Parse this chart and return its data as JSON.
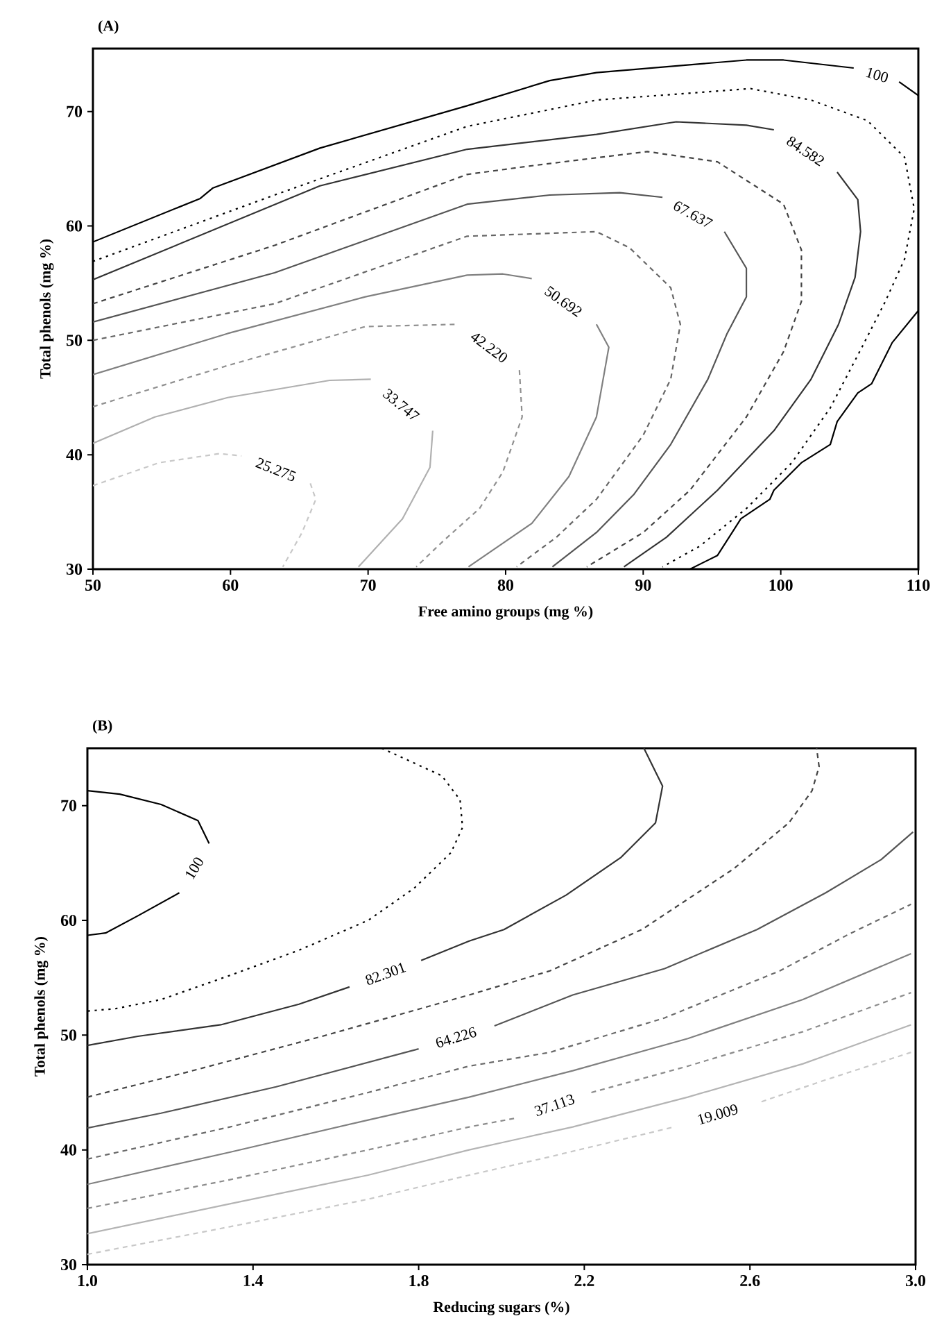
{
  "chart_data": [
    {
      "type": "line",
      "title": "(A)",
      "xlabel": "Free amino groups (mg %)",
      "ylabel": "Total phenols (mg %)",
      "xlim": [
        50,
        110
      ],
      "ylim": [
        30,
        75.5
      ],
      "xticks": [
        50,
        60,
        70,
        80,
        90,
        100,
        110
      ],
      "yticks": [
        30,
        40,
        50,
        60,
        70
      ],
      "marker": "none",
      "series": [
        {
          "name": "100",
          "color": "#000000",
          "line_style": "solid",
          "x": [
            50,
            57.8,
            58.7,
            66.5,
            77.2,
            83.2,
            86.6,
            97.5,
            100.2,
            105.3,
            107,
            108.6,
            110,
            110,
            108.1,
            106.6,
            105.6,
            104.1,
            103.6,
            101.5,
            99.5,
            99.2,
            97.1,
            95.4,
            93.4
          ],
          "values": [
            58.6,
            62.4,
            63.3,
            66.8,
            70.5,
            72.7,
            73.4,
            74.5,
            74.5,
            73.8,
            null,
            72.6,
            71.4,
            52.6,
            49.8,
            46.2,
            45.4,
            42.9,
            40.9,
            39.3,
            36.9,
            36.1,
            34.4,
            31.2,
            30
          ]
        },
        {
          "color": "#000000",
          "line_style": "dotted",
          "x": [
            50,
            63.2,
            77.2,
            86.6,
            97.8,
            102.2,
            106.3,
            109,
            109.7,
            109,
            107.6,
            105.9,
            103.6,
            100.8,
            97.5,
            94.1,
            91.4
          ],
          "values": [
            56.9,
            62.7,
            68.7,
            71.0,
            72.0,
            71.0,
            69.2,
            66.0,
            61.5,
            57.1,
            53.4,
            49.4,
            44.1,
            39.3,
            35.3,
            32.0,
            30.2
          ]
        },
        {
          "name": "84.582",
          "color": "#333333",
          "line_style": "solid",
          "x": [
            50,
            66.5,
            77.2,
            86.6,
            92.4,
            97.5,
            99.5,
            101.8,
            104.1,
            105.6,
            105.8,
            105.4,
            104.2,
            102.2,
            99.5,
            95.4,
            91.7,
            88.6
          ],
          "values": [
            55.3,
            63.5,
            66.7,
            68.0,
            69.1,
            68.8,
            68.4,
            null,
            64.7,
            62.3,
            59.5,
            55.5,
            51.4,
            46.6,
            42.1,
            36.9,
            32.8,
            30.2
          ]
        },
        {
          "color": "#444444",
          "line_style": "dashed",
          "x": [
            50,
            63.2,
            77.2,
            81.5,
            90.3,
            95.4,
            100.2,
            101.5,
            101.5,
            100.2,
            97.5,
            93.4,
            90.0,
            85.9
          ],
          "values": [
            53.2,
            58.3,
            64.5,
            65.2,
            66.5,
            65.6,
            61.9,
            57.9,
            53.4,
            49.0,
            43.3,
            36.9,
            33.2,
            30.2
          ]
        },
        {
          "name": "67.637",
          "color": "#555555",
          "line_style": "solid",
          "x": [
            50,
            63.2,
            77.2,
            83.2,
            88.3,
            91.4,
            93.6,
            95.9,
            97.5,
            97.5,
            96.1,
            94.7,
            92.0,
            89.3,
            86.6,
            83.4
          ],
          "values": [
            51.6,
            55.9,
            61.9,
            62.7,
            62.9,
            62.5,
            null,
            59.5,
            56.3,
            53.8,
            50.6,
            46.6,
            40.9,
            36.5,
            33.2,
            30.2
          ]
        },
        {
          "color": "#666666",
          "line_style": "dashed",
          "x": [
            50,
            63.2,
            77.2,
            86.6,
            89,
            92.0,
            92.7,
            92.0,
            90.0,
            86.6,
            83.7,
            80.8
          ],
          "values": [
            50.0,
            53.2,
            59.1,
            59.5,
            58.1,
            54.6,
            51.4,
            46.6,
            41.7,
            36.1,
            32.8,
            30.2
          ]
        },
        {
          "name": "50.692",
          "color": "#808080",
          "line_style": "solid",
          "x": [
            50,
            59.8,
            69.8,
            77.2,
            79.8,
            81.9,
            84.2,
            86.6,
            87.5,
            86.6,
            84.6,
            81.9,
            77.3
          ],
          "values": [
            47.0,
            50.6,
            53.8,
            55.7,
            55.8,
            55.4,
            null,
            51.4,
            49.4,
            43.3,
            38.1,
            34.0,
            30.2
          ]
        },
        {
          "name": "42.220",
          "color": "#909090",
          "line_style": "dashed",
          "x": [
            50,
            59.8,
            69.8,
            76.5,
            78.8,
            81.0,
            81.2,
            79.8,
            78.1,
            75.5,
            73.5
          ],
          "values": [
            44.2,
            47.8,
            51.2,
            51.4,
            null,
            47.4,
            43.3,
            38.5,
            35.3,
            32.5,
            30.2
          ]
        },
        {
          "name": "33.747",
          "color": "#b0b0b0",
          "line_style": "solid",
          "x": [
            50,
            54.5,
            59.8,
            67.2,
            70.2,
            72.4,
            74.7,
            74.5,
            72.5,
            69.3
          ],
          "values": [
            41.0,
            43.3,
            45.0,
            46.5,
            46.6,
            null,
            42.1,
            38.9,
            34.4,
            30.2
          ]
        },
        {
          "name": "25.275",
          "color": "#c8c8c8",
          "line_style": "dashed",
          "x": [
            50,
            54.8,
            59.2,
            60.8,
            63.3,
            65.8,
            66.2,
            65.2,
            63.8
          ],
          "values": [
            37.3,
            39.3,
            40.1,
            39.9,
            null,
            37.5,
            36.1,
            33.2,
            30.2
          ]
        }
      ]
    },
    {
      "type": "line",
      "title": "(B)",
      "xlabel": "Reducing sugars (%)",
      "ylabel": "Total phenols (mg %)",
      "xlim": [
        1.0,
        3.0
      ],
      "ylim": [
        30,
        75
      ],
      "xticks": [
        {
          "value": 1.0,
          "label": "1.0"
        },
        1.4,
        1.8,
        2.2,
        2.6,
        {
          "value": 3.0,
          "label": "3.0"
        }
      ],
      "yticks": [
        30,
        40,
        50,
        60,
        70
      ],
      "marker": "none",
      "series": [
        {
          "name": "100",
          "color": "#000000",
          "line_style": "solid",
          "x": [
            1.0,
            1.078,
            1.178,
            1.267,
            1.294,
            1.258,
            1.222,
            1.122,
            1.044,
            1.0
          ],
          "values": [
            71.3,
            71.0,
            70.1,
            68.7,
            66.7,
            null,
            62.4,
            60.4,
            58.9,
            58.7
          ]
        },
        {
          "color": "#000000",
          "line_style": "dotted",
          "x": [
            1.711,
            1.856,
            1.9,
            1.906,
            1.878,
            1.789,
            1.678,
            1.511,
            1.344,
            1.178,
            1.067,
            1.0
          ],
          "values": [
            75.0,
            72.6,
            70.5,
            68.1,
            65.9,
            62.8,
            60.0,
            57.4,
            55.2,
            53.1,
            52.3,
            52.1
          ]
        },
        {
          "name": "82.301",
          "color": "#333333",
          "line_style": "solid",
          "x": [
            1.0,
            1.122,
            1.322,
            1.511,
            1.633,
            1.72,
            1.806,
            1.922,
            2.006,
            2.156,
            2.289,
            2.372,
            2.389,
            2.344
          ],
          "values": [
            49.1,
            49.9,
            50.9,
            52.7,
            54.2,
            null,
            56.5,
            58.2,
            59.2,
            62.2,
            65.5,
            68.5,
            71.7,
            75.0
          ]
        },
        {
          "color": "#444444",
          "line_style": "dashed",
          "x": [
            1.0,
            1.233,
            1.567,
            1.922,
            2.117,
            2.339,
            2.561,
            2.694,
            2.75,
            2.767,
            2.761
          ],
          "values": [
            44.6,
            46.7,
            49.9,
            53.5,
            55.6,
            59.2,
            64.5,
            68.5,
            71.3,
            73.4,
            75.0
          ]
        },
        {
          "name": "64.226",
          "color": "#555555",
          "line_style": "solid",
          "x": [
            1.0,
            1.178,
            1.456,
            1.8,
            1.89,
            1.983,
            2.172,
            2.394,
            2.617,
            2.783,
            2.917,
            2.994
          ],
          "values": [
            41.9,
            43.2,
            45.5,
            48.8,
            null,
            50.8,
            53.5,
            55.8,
            59.2,
            62.4,
            65.3,
            67.7
          ]
        },
        {
          "color": "#6a6a6a",
          "line_style": "dashed",
          "x": [
            1.0,
            1.344,
            1.678,
            1.922,
            2.117,
            2.394,
            2.672,
            2.839,
            2.989
          ],
          "values": [
            39.2,
            42.0,
            45.0,
            47.3,
            48.5,
            51.5,
            55.6,
            58.8,
            61.4
          ]
        },
        {
          "color": "#808080",
          "line_style": "solid",
          "x": [
            1.0,
            1.344,
            1.678,
            1.922,
            2.172,
            2.45,
            2.728,
            2.989
          ],
          "values": [
            37.0,
            39.8,
            42.6,
            44.6,
            46.9,
            49.7,
            53.1,
            57.1
          ]
        },
        {
          "name": "37.113",
          "color": "#8c8c8c",
          "line_style": "dashed",
          "x": [
            1.0,
            1.344,
            1.678,
            1.922,
            2.039,
            2.128,
            2.217,
            2.45,
            2.728,
            2.989
          ],
          "values": [
            34.9,
            37.4,
            40.0,
            42.0,
            42.8,
            null,
            45.0,
            47.3,
            50.3,
            53.7
          ]
        },
        {
          "color": "#b4b4b4",
          "line_style": "solid",
          "x": [
            1.0,
            1.344,
            1.678,
            1.922,
            2.172,
            2.45,
            2.728,
            2.989
          ],
          "values": [
            32.7,
            35.3,
            37.8,
            40.0,
            42.0,
            44.6,
            47.5,
            50.9
          ]
        },
        {
          "name": "19.009",
          "color": "#c8c8c8",
          "line_style": "dashed",
          "x": [
            1.0,
            1.344,
            1.678,
            1.922,
            2.117,
            2.417,
            2.522,
            2.628,
            2.783,
            2.989
          ],
          "values": [
            30.9,
            33.3,
            35.7,
            37.8,
            39.4,
            42.0,
            null,
            44.2,
            46.1,
            48.5
          ]
        }
      ]
    }
  ]
}
